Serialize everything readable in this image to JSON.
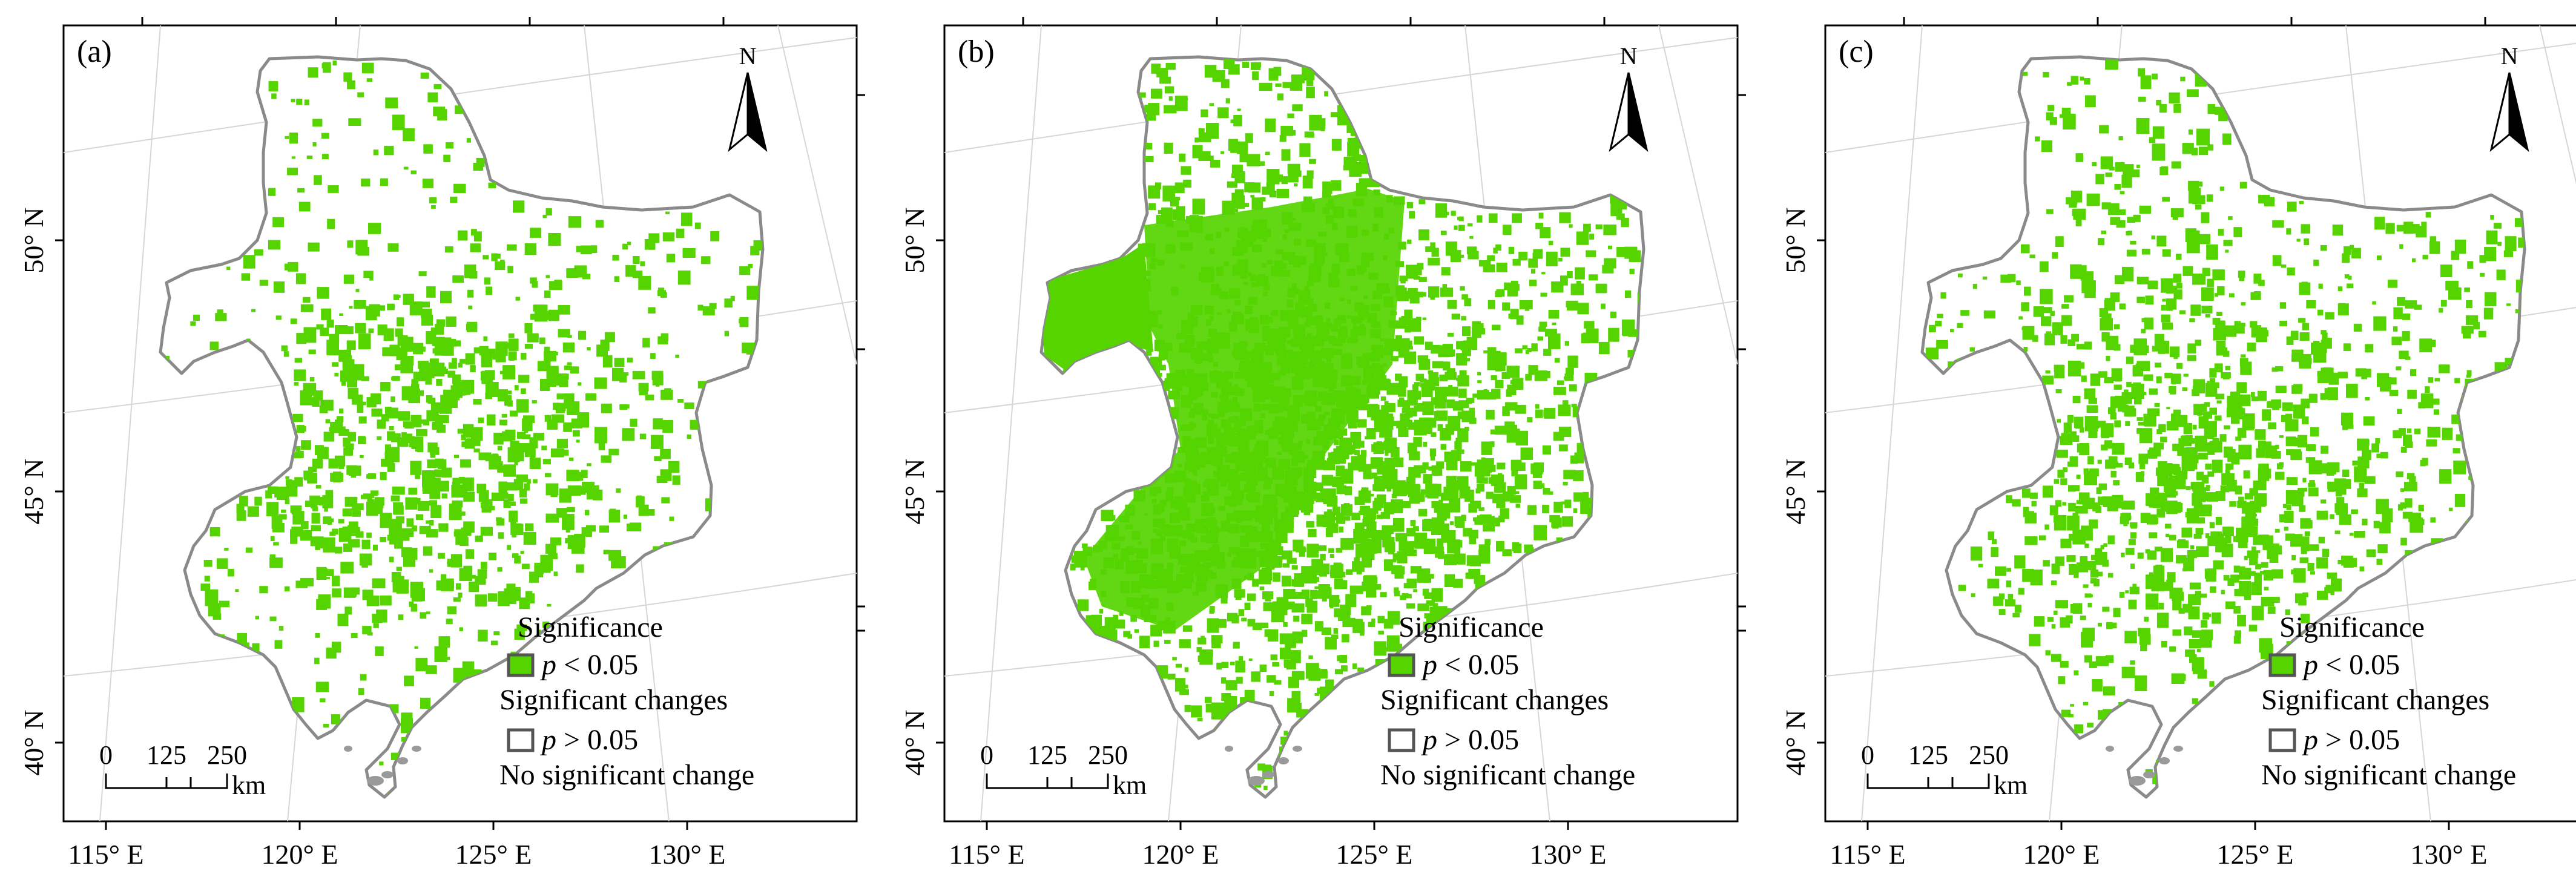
{
  "panels": [
    {
      "label": "(a)",
      "fill_density": 0.26,
      "core_intensity": 0.55,
      "west_block": false
    },
    {
      "label": "(b)",
      "fill_density": 0.72,
      "core_intensity": 0.95,
      "west_block": true
    },
    {
      "label": "(c)",
      "fill_density": 0.42,
      "core_intensity": 0.55,
      "west_block": false
    }
  ],
  "axes": {
    "x_ticks": [
      "115° E",
      "120° E",
      "125° E",
      "130° E"
    ],
    "y_ticks": [
      "40° N",
      "45° N",
      "50° N"
    ]
  },
  "north_arrow": {
    "label": "N"
  },
  "scale_bar": {
    "labels": [
      "0",
      "125",
      "250"
    ],
    "unit": "km"
  },
  "legend": {
    "title": "Significance",
    "items": [
      {
        "p_label": "p",
        "threshold": "< 0.05",
        "description": "Significant changes",
        "fill": "#55d400",
        "stroke": "#555555"
      },
      {
        "p_label": "p",
        "threshold": "> 0.05",
        "description": "No significant change",
        "fill": "#ffffff",
        "stroke": "#555555"
      }
    ]
  },
  "colors": {
    "significant": "#55d400",
    "boundary": "#8a8a8a"
  }
}
